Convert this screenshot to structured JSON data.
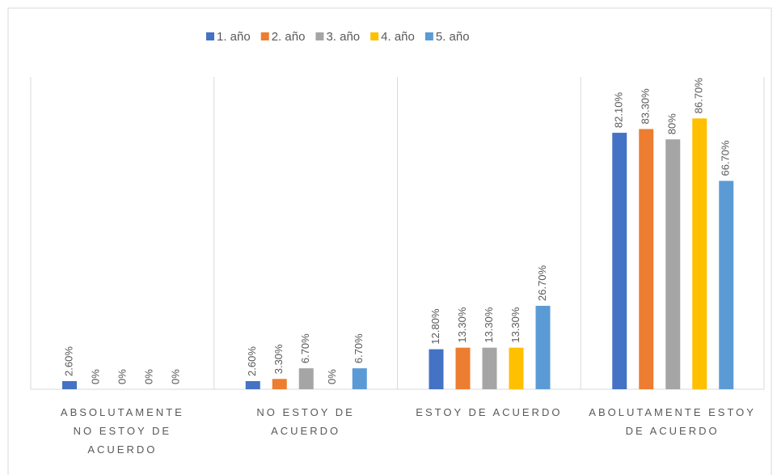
{
  "chart_data": {
    "type": "bar",
    "categories": [
      "ABSOLUTAMENTE NO ESTOY DE ACUERDO",
      "NO ESTOY DE ACUERDO",
      "ESTOY DE ACUERDO",
      "ABOLUTAMENTE ESTOY DE ACUERDO"
    ],
    "series": [
      {
        "name": "1. año",
        "color": "#4472c4",
        "values": [
          2.6,
          2.6,
          12.8,
          82.1
        ],
        "value_labels": [
          "2.60%",
          "2.60%",
          "12.80%",
          "82.10%"
        ]
      },
      {
        "name": "2. año",
        "color": "#ed7d31",
        "values": [
          0,
          3.3,
          13.3,
          83.3
        ],
        "value_labels": [
          "0%",
          "3.30%",
          "13.30%",
          "83.30%"
        ]
      },
      {
        "name": "3. año",
        "color": "#a5a5a5",
        "values": [
          0,
          6.7,
          13.3,
          80
        ],
        "value_labels": [
          "0%",
          "6.70%",
          "13.30%",
          "80%"
        ]
      },
      {
        "name": "4. año",
        "color": "#ffc000",
        "values": [
          0,
          0,
          13.3,
          86.7
        ],
        "value_labels": [
          "0%",
          "0%",
          "13.30%",
          "86.70%"
        ]
      },
      {
        "name": "5. año",
        "color": "#5b9bd5",
        "values": [
          0,
          6.7,
          26.7,
          66.7
        ],
        "value_labels": [
          "0%",
          "6.70%",
          "26.70%",
          "66.70%"
        ]
      }
    ],
    "ylim": [
      0,
      100
    ],
    "legend": "top"
  }
}
